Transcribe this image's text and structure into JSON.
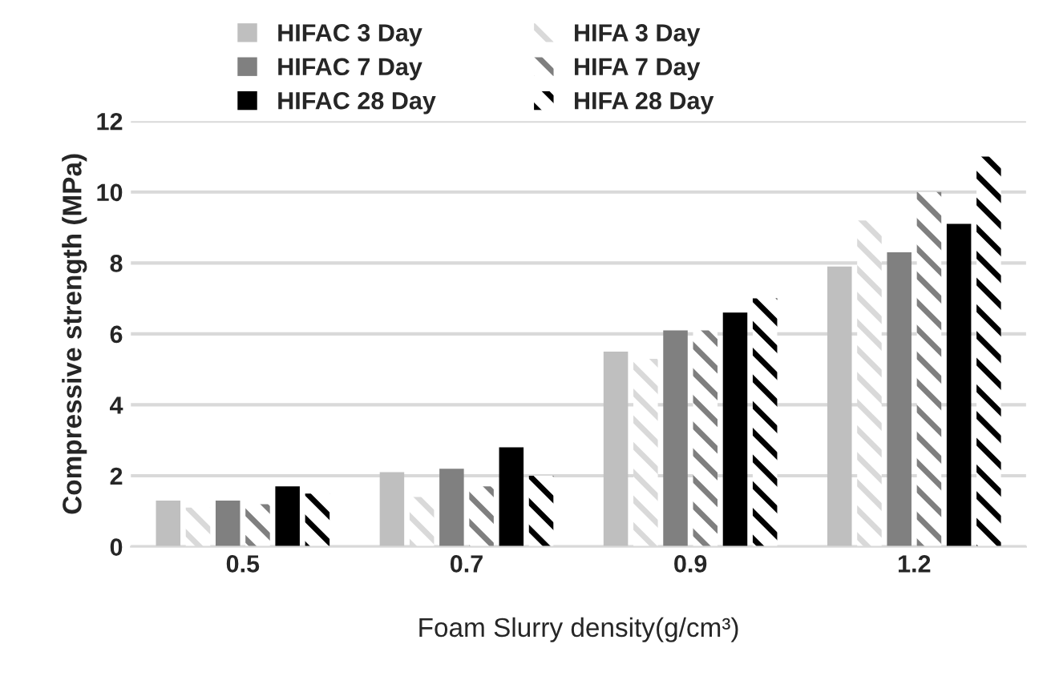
{
  "chart_data": {
    "type": "bar",
    "xlabel": "Foam Slurry density(g/cm³)",
    "ylabel": "Compressive strength (MPa)",
    "categories": [
      "0.5",
      "0.7",
      "0.9",
      "1.2"
    ],
    "series": [
      {
        "name": "HIFAC 3 Day",
        "color": "#bfbfbf",
        "values": [
          1.3,
          2.1,
          5.5,
          7.9
        ]
      },
      {
        "name": "HIFA 3 Day",
        "color": "#d9d9d9",
        "values": [
          1.1,
          1.4,
          5.3,
          9.2
        ]
      },
      {
        "name": "HIFAC 7 Day",
        "color": "#808080",
        "values": [
          1.3,
          2.2,
          6.1,
          8.3
        ]
      },
      {
        "name": "HIFA 7 Day",
        "color": "#7f7f7f",
        "values": [
          1.2,
          1.7,
          6.1,
          10.0
        ]
      },
      {
        "name": "HIFAC 28 Day",
        "color": "#000000",
        "values": [
          1.7,
          2.8,
          6.6,
          9.1
        ]
      },
      {
        "name": "HIFA 28 Day",
        "color": "#000000",
        "values": [
          1.5,
          2.0,
          7.0,
          11.0
        ]
      }
    ],
    "ylim": [
      0,
      12
    ],
    "yticks": [
      0,
      2,
      4,
      6,
      8,
      10,
      12
    ],
    "grid": "y",
    "legend": "top"
  }
}
